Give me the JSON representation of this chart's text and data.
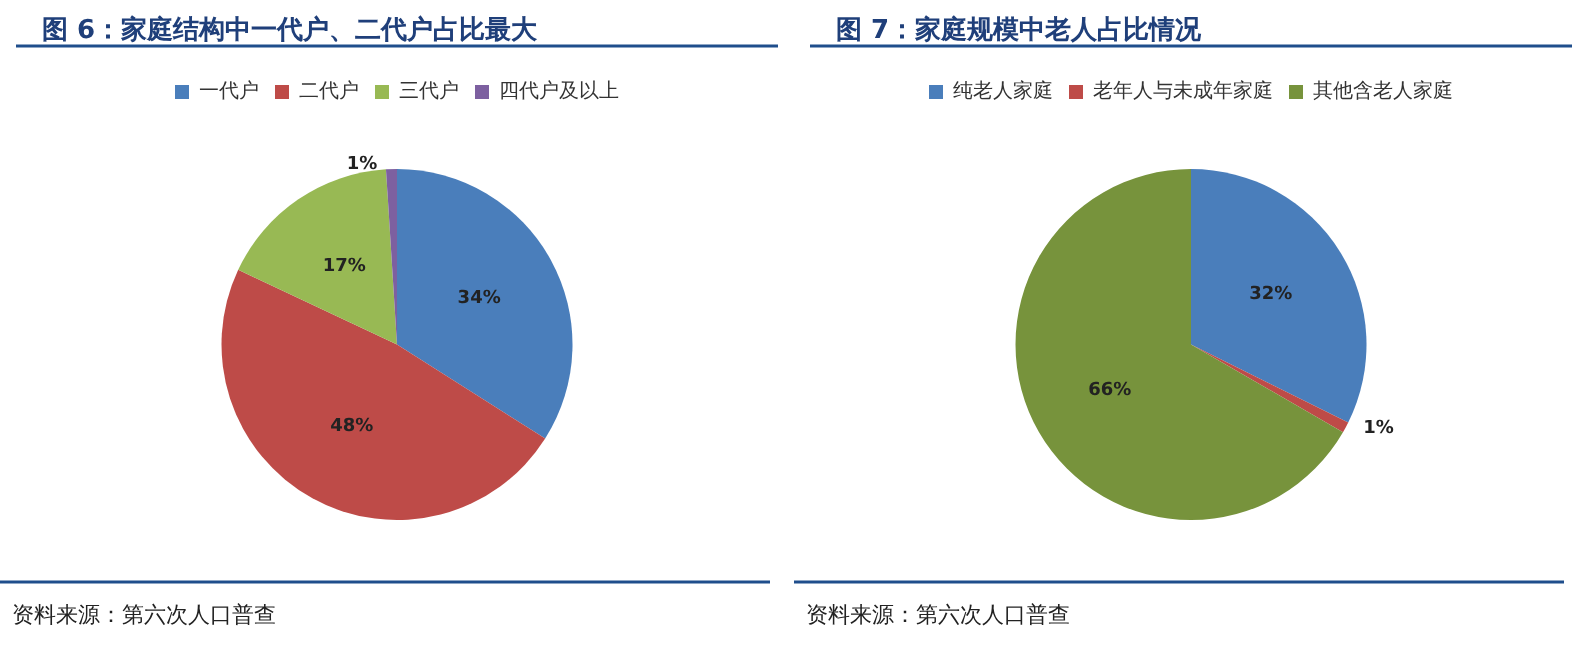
{
  "chart_data": [
    {
      "type": "pie",
      "title": "图 6：家庭结构中一代户、二代户占比最大",
      "categories": [
        "一代户",
        "二代户",
        "三代户",
        "四代户及以上"
      ],
      "values": [
        34,
        48,
        17,
        1
      ],
      "colors": [
        "#4a7ebb",
        "#be4b48",
        "#98b954",
        "#7d60a0"
      ],
      "value_labels": [
        "34%",
        "48%",
        "17%",
        "1%"
      ],
      "legend": "top",
      "annotations": [
        "资料来源：第六次人口普查"
      ]
    },
    {
      "type": "pie",
      "title": "图 7：家庭规模中老人占比情况",
      "categories": [
        "纯老人家庭",
        "老年人与未成年家庭",
        "其他含老人家庭"
      ],
      "values": [
        32,
        1,
        66
      ],
      "colors": [
        "#4a7ebb",
        "#be4b48",
        "#77933c"
      ],
      "value_labels": [
        "32%",
        "1%",
        "66%"
      ],
      "legend": "top",
      "annotations": [
        "资料来源：第六次人口普查"
      ]
    }
  ]
}
